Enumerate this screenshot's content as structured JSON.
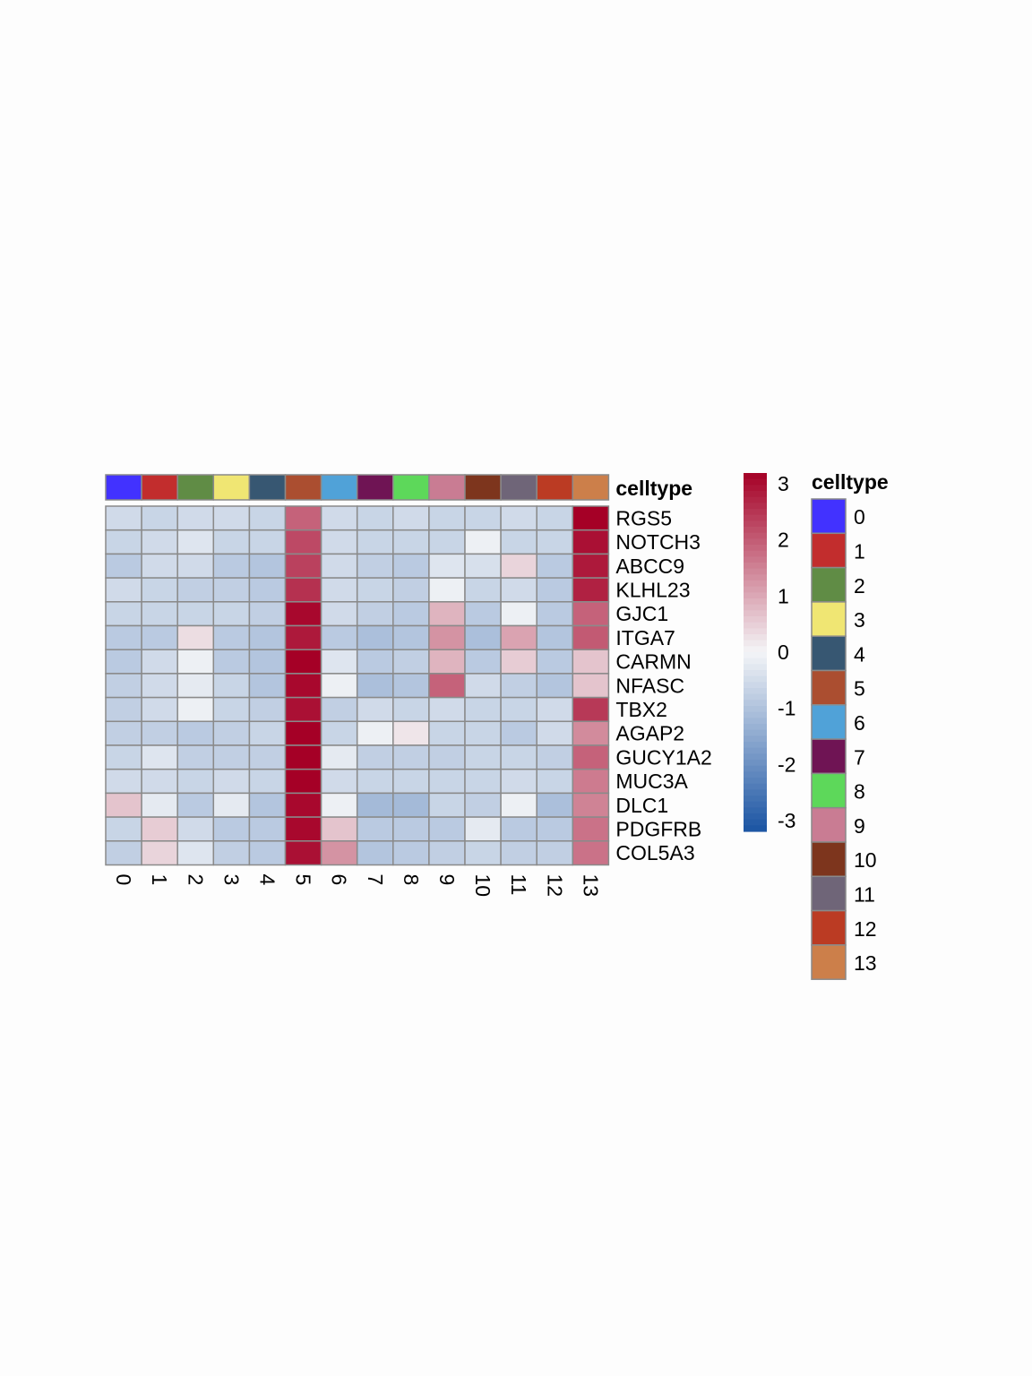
{
  "chart_data": {
    "type": "heatmap",
    "columns": [
      "0",
      "1",
      "2",
      "3",
      "4",
      "5",
      "6",
      "7",
      "8",
      "9",
      "10",
      "11",
      "12",
      "13"
    ],
    "rows": [
      "RGS5",
      "NOTCH3",
      "ABCC9",
      "KLHL23",
      "GJC1",
      "ITGA7",
      "CARMN",
      "NFASC",
      "TBX2",
      "AGAP2",
      "GUCY1A2",
      "MUC3A",
      "DLC1",
      "PDGFRB",
      "COL5A3"
    ],
    "values": [
      [
        -0.5,
        -0.6,
        -0.5,
        -0.5,
        -0.6,
        1.8,
        -0.5,
        -0.6,
        -0.5,
        -0.6,
        -0.6,
        -0.5,
        -0.6,
        3.0
      ],
      [
        -0.6,
        -0.5,
        -0.3,
        -0.6,
        -0.6,
        2.1,
        -0.5,
        -0.6,
        -0.6,
        -0.6,
        -0.1,
        -0.6,
        -0.6,
        2.8
      ],
      [
        -0.8,
        -0.5,
        -0.5,
        -0.8,
        -0.9,
        2.2,
        -0.5,
        -0.7,
        -0.8,
        -0.3,
        -0.4,
        0.4,
        -0.8,
        2.7
      ],
      [
        -0.5,
        -0.6,
        -0.7,
        -0.7,
        -0.8,
        2.4,
        -0.5,
        -0.6,
        -0.7,
        -0.1,
        -0.6,
        -0.5,
        -0.8,
        2.6
      ],
      [
        -0.6,
        -0.6,
        -0.6,
        -0.6,
        -0.7,
        2.9,
        -0.5,
        -0.7,
        -0.8,
        0.8,
        -0.8,
        -0.1,
        -0.8,
        1.8
      ],
      [
        -0.8,
        -0.8,
        0.3,
        -0.8,
        -0.9,
        2.7,
        -0.8,
        -1.0,
        -0.9,
        1.2,
        -1.0,
        1.0,
        -0.9,
        1.9
      ],
      [
        -0.8,
        -0.5,
        -0.1,
        -0.8,
        -0.9,
        3.1,
        -0.3,
        -0.8,
        -0.7,
        0.8,
        -0.8,
        0.5,
        -0.8,
        0.6
      ],
      [
        -0.7,
        -0.5,
        -0.2,
        -0.6,
        -0.9,
        2.9,
        -0.1,
        -1.0,
        -0.9,
        1.8,
        -0.5,
        -0.7,
        -0.9,
        0.6
      ],
      [
        -0.7,
        -0.5,
        -0.1,
        -0.6,
        -0.7,
        2.8,
        -0.7,
        -0.5,
        -0.6,
        -0.5,
        -0.6,
        -0.6,
        -0.5,
        2.3
      ],
      [
        -0.7,
        -0.7,
        -0.8,
        -0.7,
        -0.6,
        3.1,
        -0.6,
        -0.1,
        0.2,
        -0.6,
        -0.6,
        -0.8,
        -0.5,
        1.3
      ],
      [
        -0.6,
        -0.3,
        -0.7,
        -0.7,
        -0.7,
        3.0,
        -0.2,
        -0.7,
        -0.7,
        -0.7,
        -0.6,
        -0.6,
        -0.7,
        1.8
      ],
      [
        -0.5,
        -0.5,
        -0.6,
        -0.5,
        -0.6,
        3.1,
        -0.5,
        -0.6,
        -0.6,
        -0.6,
        -0.6,
        -0.5,
        -0.6,
        1.5
      ],
      [
        0.6,
        -0.2,
        -0.8,
        -0.2,
        -0.9,
        2.9,
        -0.1,
        -1.1,
        -1.1,
        -0.6,
        -0.7,
        -0.1,
        -1.0,
        1.4
      ],
      [
        -0.6,
        0.5,
        -0.5,
        -0.8,
        -0.8,
        2.9,
        0.6,
        -0.8,
        -0.8,
        -0.8,
        -0.2,
        -0.8,
        -0.8,
        1.6
      ],
      [
        -0.7,
        0.4,
        -0.3,
        -0.7,
        -0.8,
        2.8,
        1.2,
        -0.9,
        -0.8,
        -0.7,
        -0.6,
        -0.7,
        -0.7,
        1.6
      ]
    ],
    "color_scale": {
      "min": -3,
      "max": 3,
      "low": "#1a54a3",
      "mid": "#f4f5f7",
      "high": "#a50026",
      "ticks": [
        3,
        2,
        1,
        0,
        -1,
        -2,
        -3
      ]
    },
    "annotation": {
      "title": "celltype",
      "colors": {
        "0": "#4232ff",
        "1": "#c22d2d",
        "2": "#608c45",
        "3": "#f0e673",
        "4": "#375772",
        "5": "#ab4e30",
        "6": "#50a2d8",
        "7": "#6f1454",
        "8": "#5dd85a",
        "9": "#c97c93",
        "10": "#7d351d",
        "11": "#6f6578",
        "12": "#bb3b23",
        "13": "#cc7f4a"
      }
    },
    "legend": {
      "title": "celltype"
    }
  }
}
